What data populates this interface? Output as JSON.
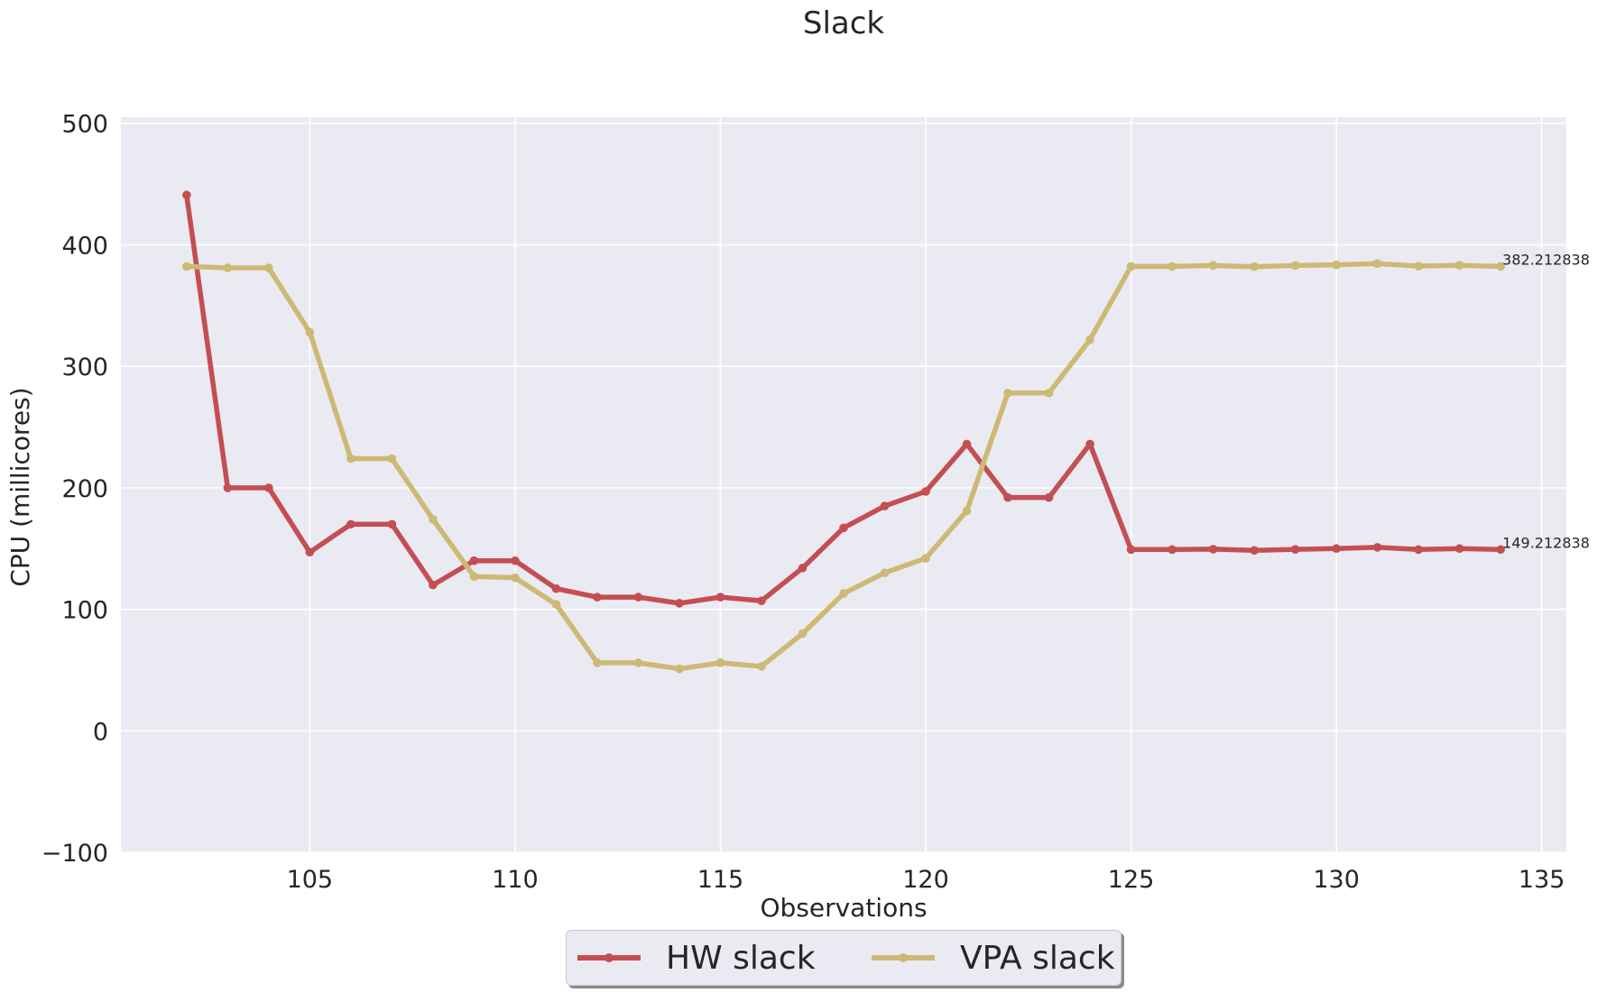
{
  "chart_data": {
    "type": "line",
    "title": "Slack",
    "xlabel": "Observations",
    "ylabel": "CPU (millicores)",
    "xlim": [
      100.4,
      135.6
    ],
    "ylim": [
      -100,
      505
    ],
    "xticks": [
      105,
      110,
      115,
      120,
      125,
      130,
      135
    ],
    "yticks": [
      -100,
      0,
      100,
      200,
      300,
      400,
      500
    ],
    "grid": true,
    "legend_position": "bottom-center",
    "x": [
      102,
      103,
      104,
      105,
      106,
      107,
      108,
      109,
      110,
      111,
      112,
      113,
      114,
      115,
      116,
      117,
      118,
      119,
      120,
      121,
      122,
      123,
      124,
      125,
      126,
      127,
      128,
      129,
      130,
      131,
      132,
      133,
      134
    ],
    "series": [
      {
        "name": "HW slack",
        "color": "#c44e52",
        "values": [
          441,
          200,
          200,
          147,
          170,
          170,
          120,
          140,
          140,
          117,
          110,
          110,
          105,
          110,
          107,
          134,
          167,
          185,
          197,
          236,
          192,
          192,
          236,
          149.2,
          149.2,
          149.5,
          148.5,
          149.3,
          150,
          151,
          149.2,
          150,
          149.212838
        ],
        "end_label": "149.212838"
      },
      {
        "name": "VPA slack",
        "color": "#ccb974",
        "values": [
          382.2,
          381,
          381,
          328,
          224,
          224,
          174,
          127,
          126,
          104,
          56,
          56,
          51,
          56,
          53,
          80,
          113,
          130,
          142,
          181,
          278,
          278,
          322,
          382.2,
          382.2,
          383,
          382,
          383,
          383.5,
          384.5,
          382.5,
          383.2,
          382.212838
        ],
        "end_label": "382.212838"
      }
    ]
  }
}
